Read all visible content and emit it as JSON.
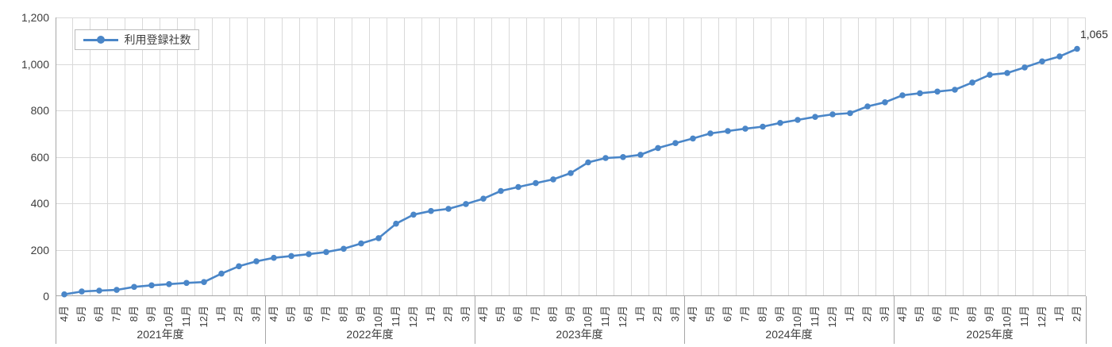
{
  "chart": {
    "legend_label": "利用登録社数",
    "final_value_label": "1,065",
    "colors": {
      "line": "#4a86c8",
      "marker": "#4a86c8",
      "gridline": "#d9d9d9",
      "axis_line": "#a6a6a6",
      "text": "#3d3d3d"
    }
  },
  "chart_data": {
    "type": "line",
    "title": "",
    "legend": [
      "利用登録社数"
    ],
    "legend_position": "top-left",
    "grid": true,
    "ylim": [
      0,
      1200
    ],
    "ytick_interval": 200,
    "ytick_labels": [
      "0",
      "200",
      "400",
      "600",
      "800",
      "1,000",
      "1,200"
    ],
    "series_name": "利用登録社数",
    "last_point_label": "1,065",
    "x_groups": [
      {
        "year": "2021年度",
        "months": [
          "4月",
          "5月",
          "6月",
          "7月",
          "8月",
          "9月",
          "10月",
          "11月",
          "12月",
          "1月",
          "2月",
          "3月"
        ],
        "values": [
          8,
          20,
          24,
          27,
          40,
          47,
          52,
          57,
          61,
          97,
          129,
          150
        ]
      },
      {
        "year": "2022年度",
        "months": [
          "4月",
          "5月",
          "6月",
          "7月",
          "8月",
          "9月",
          "10月",
          "11月",
          "12月",
          "1月",
          "2月",
          "3月"
        ],
        "values": [
          165,
          173,
          181,
          190,
          204,
          227,
          250,
          312,
          351,
          367,
          376,
          397
        ]
      },
      {
        "year": "2023年度",
        "months": [
          "4月",
          "5月",
          "6月",
          "7月",
          "8月",
          "9月",
          "10月",
          "11月",
          "12月",
          "1月",
          "2月",
          "3月"
        ],
        "values": [
          420,
          453,
          470,
          487,
          503,
          530,
          576,
          595,
          599,
          609,
          638,
          659
        ]
      },
      {
        "year": "2024年度",
        "months": [
          "4月",
          "5月",
          "6月",
          "7月",
          "8月",
          "9月",
          "10月",
          "11月",
          "12月",
          "1月",
          "2月",
          "3月"
        ],
        "values": [
          679,
          701,
          711,
          721,
          730,
          746,
          759,
          772,
          783,
          788,
          817,
          835
        ]
      },
      {
        "year": "2025年度",
        "months": [
          "4月",
          "5月",
          "6月",
          "7月",
          "8月",
          "9月",
          "10月",
          "11月",
          "12月",
          "1月",
          "2月"
        ],
        "values": [
          865,
          874,
          881,
          889,
          920,
          953,
          961,
          985,
          1011,
          1032,
          1065
        ]
      }
    ]
  }
}
